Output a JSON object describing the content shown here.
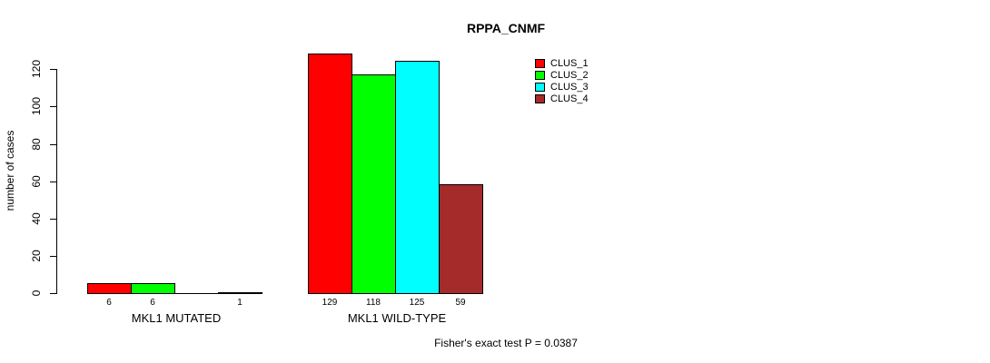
{
  "page": {
    "background": "#ffffff"
  },
  "chart_data": {
    "type": "bar",
    "title": "RPPA_CNMF",
    "xlabel": "",
    "ylabel": "number of cases",
    "categories": [
      "MKL1 MUTATED",
      "MKL1 WILD-TYPE"
    ],
    "series": [
      {
        "name": "CLUS_1",
        "color": "#ff0000",
        "values": [
          6,
          129
        ]
      },
      {
        "name": "CLUS_2",
        "color": "#00ff00",
        "values": [
          6,
          118
        ]
      },
      {
        "name": "CLUS_3",
        "color": "#00ffff",
        "values": [
          0,
          125
        ]
      },
      {
        "name": "CLUS_4",
        "color": "#a52a2a",
        "values": [
          1,
          59
        ]
      }
    ],
    "bar_value_labels": [
      [
        "6",
        "6",
        "",
        "1"
      ],
      [
        "129",
        "118",
        "125",
        "59"
      ]
    ],
    "yticks": [
      0,
      20,
      40,
      60,
      80,
      100,
      120
    ],
    "ylim": [
      0,
      120
    ],
    "grid": false,
    "legend": [
      "CLUS_1",
      "CLUS_2",
      "CLUS_3",
      "CLUS_4"
    ],
    "legend_position": "top-right",
    "annotation": "Fisher's exact test P = 0.0387"
  }
}
